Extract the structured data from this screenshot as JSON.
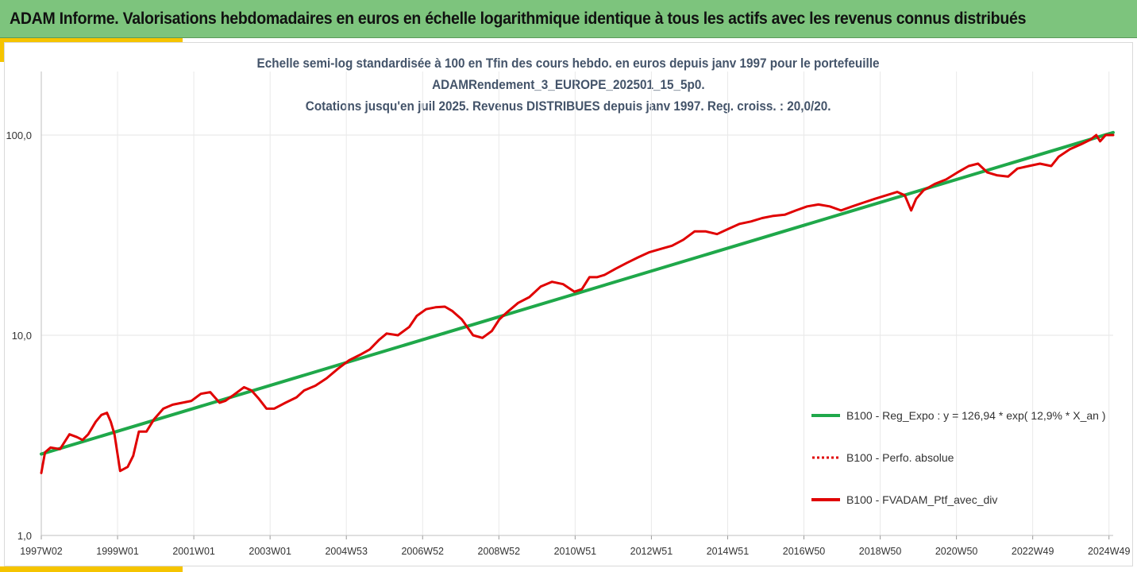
{
  "header": {
    "title": "ADAM Informe. Valorisations hebdomadaires en euros en échelle logarithmique identique à tous les actifs avec les revenus connus distribués"
  },
  "chart_data": {
    "type": "line",
    "title_lines": [
      "Echelle semi-log standardisée à 100 en Tfin des cours hebdo.  en euros depuis janv 1997 pour le portefeuille",
      "ADAMRendement_3_EUROPE_202501_15_5p0.",
      "Cotations  jusqu'en juil 2025. Revenus DISTRIBUES depuis janv 1997. Reg. croiss. : 20,0/20."
    ],
    "y_scale": "log",
    "ylim": [
      1,
      100
    ],
    "y_ticks": [
      "1,0",
      "10,0",
      "100,0"
    ],
    "x_ticks": [
      "1997W02",
      "1999W01",
      "2001W01",
      "2003W01",
      "2004W53",
      "2006W52",
      "2008W52",
      "2010W51",
      "2012W51",
      "2014W51",
      "2016W50",
      "2018W50",
      "2020W50",
      "2022W49",
      "2024W49"
    ],
    "grid": "vertical",
    "legend_position": "right",
    "series": [
      {
        "name": "B100 - Reg_Expo : y = 126,94 * exp( 12,9% *  X_an )",
        "color": "#1fa84a",
        "style": "solid",
        "x": [
          1997.0,
          2025.55
        ],
        "y": [
          2.55,
          103.0
        ]
      },
      {
        "name": "B100 - Perfo. absolue",
        "color": "#e00000",
        "style": "dotted",
        "x": [],
        "y": []
      },
      {
        "name": "B100 - FVADAM_Ptf_avec_div",
        "color": "#e00000",
        "style": "solid",
        "x": [
          1997.0,
          1997.1,
          1997.25,
          1997.5,
          1997.75,
          1997.95,
          1998.1,
          1998.25,
          1998.45,
          1998.6,
          1998.75,
          1998.85,
          1998.95,
          1999.1,
          1999.3,
          1999.45,
          1999.6,
          1999.8,
          2000.0,
          2000.25,
          2000.5,
          2000.75,
          2001.0,
          2001.25,
          2001.5,
          2001.75,
          2001.9,
          2002.1,
          2002.4,
          2002.6,
          2002.8,
          2003.0,
          2003.2,
          2003.5,
          2003.8,
          2004.0,
          2004.3,
          2004.6,
          2004.9,
          2005.2,
          2005.5,
          2005.75,
          2006.0,
          2006.2,
          2006.5,
          2006.8,
          2007.0,
          2007.25,
          2007.5,
          2007.75,
          2007.95,
          2008.2,
          2008.5,
          2008.75,
          2009.0,
          2009.2,
          2009.4,
          2009.7,
          2010.0,
          2010.3,
          2010.6,
          2010.9,
          2011.2,
          2011.4,
          2011.6,
          2011.8,
          2012.0,
          2012.3,
          2012.6,
          2012.9,
          2013.2,
          2013.5,
          2013.8,
          2014.1,
          2014.4,
          2014.7,
          2015.0,
          2015.3,
          2015.6,
          2015.9,
          2016.2,
          2016.5,
          2016.8,
          2017.1,
          2017.4,
          2017.7,
          2018.0,
          2018.3,
          2018.6,
          2018.9,
          2019.2,
          2019.5,
          2019.8,
          2020.0,
          2020.17,
          2020.3,
          2020.5,
          2020.8,
          2021.1,
          2021.4,
          2021.7,
          2021.95,
          2022.2,
          2022.45,
          2022.75,
          2023.0,
          2023.3,
          2023.6,
          2023.9,
          2024.1,
          2024.4,
          2024.7,
          2024.95,
          2025.1,
          2025.2,
          2025.35,
          2025.55
        ],
        "y": [
          2.05,
          2.6,
          2.75,
          2.7,
          3.2,
          3.1,
          3.0,
          3.2,
          3.7,
          4.0,
          4.1,
          3.7,
          3.2,
          2.1,
          2.2,
          2.5,
          3.3,
          3.3,
          3.8,
          4.3,
          4.5,
          4.6,
          4.7,
          5.1,
          5.2,
          4.6,
          4.7,
          5.0,
          5.5,
          5.3,
          4.8,
          4.3,
          4.3,
          4.6,
          4.9,
          5.3,
          5.6,
          6.1,
          6.8,
          7.5,
          8.0,
          8.5,
          9.5,
          10.2,
          10.0,
          11.0,
          12.5,
          13.5,
          13.8,
          13.9,
          13.2,
          12.0,
          10.0,
          9.7,
          10.5,
          12.0,
          13.0,
          14.5,
          15.5,
          17.5,
          18.5,
          18.0,
          16.5,
          17.0,
          19.5,
          19.5,
          20.0,
          21.5,
          23.0,
          24.5,
          26.0,
          27.0,
          28.0,
          30.0,
          33.0,
          33.0,
          32.0,
          34.0,
          36.0,
          37.0,
          38.5,
          39.5,
          40.0,
          42.0,
          44.0,
          45.0,
          44.0,
          42.0,
          44.0,
          46.0,
          48.0,
          50.0,
          52.0,
          50.0,
          42.0,
          48.0,
          53.0,
          57.0,
          60.0,
          65.0,
          70.0,
          72.0,
          65.0,
          63.0,
          62.0,
          68.0,
          70.0,
          72.0,
          70.0,
          78.0,
          85.0,
          90.0,
          95.0,
          100.0,
          93.0,
          100.0,
          100.0
        ]
      }
    ]
  }
}
